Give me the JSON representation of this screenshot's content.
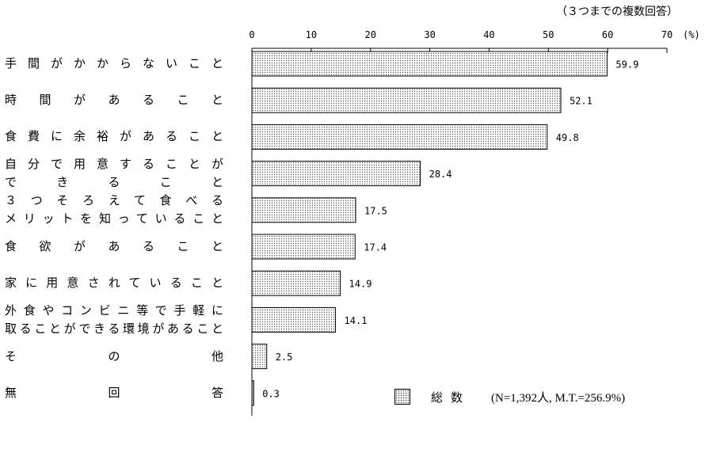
{
  "note": "（３つまでの複数回答）",
  "legend": {
    "name": "総数",
    "sample": "(N=1,392人, M.T.=256.9%)"
  },
  "chart_data": {
    "type": "bar",
    "orientation": "horizontal",
    "unit_label": "(%)",
    "xlim": [
      0,
      70
    ],
    "ticks": [
      0,
      10,
      20,
      30,
      40,
      50,
      60,
      70
    ],
    "categories": [
      [
        "手間がかからないこと"
      ],
      [
        "時間があること"
      ],
      [
        "食費に余裕があること"
      ],
      [
        "自分で用意することが",
        "できること"
      ],
      [
        "３つそろえて食べる",
        "メリットを知っていること"
      ],
      [
        "食欲があること"
      ],
      [
        "家に用意されていること"
      ],
      [
        "外食やコンビニ等で手軽に",
        "取ることができる環境があること"
      ],
      [
        "その他"
      ],
      [
        "無回答"
      ]
    ],
    "series": [
      {
        "name": "総数",
        "values": [
          59.9,
          52.1,
          49.8,
          28.4,
          17.5,
          17.4,
          14.9,
          14.1,
          2.5,
          0.3
        ]
      }
    ],
    "value_labels": [
      "59.9",
      "52.1",
      "49.8",
      "28.4",
      "17.5",
      "17.4",
      "14.9",
      "14.1",
      "2.5",
      "0.3"
    ]
  }
}
